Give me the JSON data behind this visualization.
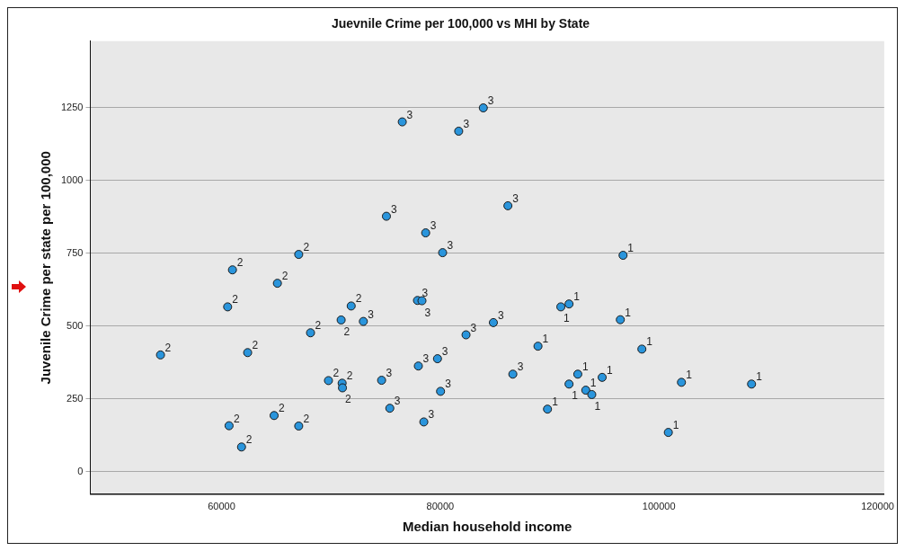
{
  "chart_data": {
    "type": "scatter",
    "title": "Juevnile Crime per 100,000 vs MHI by State",
    "xlabel": "Median household income",
    "ylabel": "Juvenile Crime per state per 100,000",
    "xlim": [
      48000,
      120600
    ],
    "xticks": [
      60000,
      80000,
      100000,
      120000
    ],
    "ylim": [
      -77,
      1478
    ],
    "yticks": [
      0,
      250,
      500,
      750,
      1000,
      1250
    ],
    "grid": "y",
    "legend": false,
    "marker": "circle",
    "series": [
      {
        "name": "1",
        "color": "#2a95dc",
        "x": [
          88940,
          91030,
          91780,
          89810,
          91780,
          92580,
          93310,
          93860,
          94810,
          96720,
          96470,
          98440,
          102060,
          108470,
          100860
        ],
        "values": [
          431,
          566,
          576,
          215,
          301,
          335,
          280,
          265,
          324,
          743,
          522,
          421,
          307,
          301,
          135
        ]
      },
      {
        "name": "2",
        "color": "#2a95dc",
        "x": [
          54420,
          61000,
          60560,
          65110,
          67060,
          62390,
          68140,
          71860,
          70940,
          69780,
          71030,
          71060,
          60690,
          61830,
          64810,
          67060
        ],
        "values": [
          401,
          693,
          566,
          647,
          746,
          409,
          477,
          569,
          521,
          313,
          304,
          288,
          158,
          85,
          193,
          157
        ]
      },
      {
        "name": "3",
        "color": "#2a95dc",
        "x": [
          72970,
          76530,
          81690,
          83940,
          75080,
          78670,
          80220,
          86190,
          77920,
          78330,
          74640,
          75390,
          78000,
          79750,
          80030,
          78500,
          82360,
          84860,
          86640
        ],
        "values": [
          516,
          1201,
          1169,
          1249,
          877,
          820,
          752,
          913,
          588,
          587,
          314,
          218,
          363,
          388,
          276,
          171,
          470,
          512,
          335
        ]
      }
    ]
  }
}
